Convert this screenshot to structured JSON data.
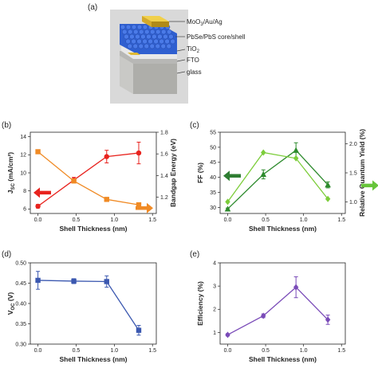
{
  "panels": {
    "a": "(a)",
    "b": "(b)",
    "c": "(c)",
    "d": "(d)",
    "e": "(e)"
  },
  "device_layers": [
    "MoO3/Au/Ag",
    "PbSe/PbS core/shell",
    "TiO2",
    "FTO",
    "glass"
  ],
  "colors": {
    "jsc": "#e8231e",
    "bandgap": "#f08a24",
    "ff": "#2e8b2e",
    "qy": "#7ccd3a",
    "voc": "#3b58b0",
    "eff": "#7a4bb8",
    "arrow_jsc": "#e8231e",
    "arrow_bandgap": "#f08a24",
    "arrow_ff": "#2e7d32",
    "arrow_qy": "#66c43a"
  },
  "chart_data": [
    {
      "panel": "b",
      "type": "line",
      "xlabel": "Shell Thickness (nm)",
      "xlim": [
        -0.1,
        1.55
      ],
      "xticks": [
        "0.0",
        "0.5",
        "1.0",
        "1.5"
      ],
      "ylabel_left": "J_SC (mA/cm²)",
      "ylim_left": [
        5.5,
        14.5
      ],
      "yticks_left": [
        "6",
        "8",
        "10",
        "12",
        "14"
      ],
      "ylabel_right": "Bandgap Energy (eV)",
      "ylim_right": [
        1.05,
        1.8
      ],
      "yticks_right": [
        "1.2",
        "1.4",
        "1.6",
        "1.8"
      ],
      "series": [
        {
          "axis": "left",
          "color": "jsc",
          "marker": "circle",
          "x": [
            0,
            0.47,
            0.9,
            1.32
          ],
          "y": [
            6.3,
            9.2,
            11.8,
            12.2
          ],
          "err": [
            0.2,
            0.3,
            0.7,
            1.2
          ]
        },
        {
          "axis": "right",
          "color": "bandgap",
          "marker": "square",
          "x": [
            0,
            0.47,
            0.9,
            1.32
          ],
          "y": [
            1.62,
            1.35,
            1.18,
            1.13
          ],
          "err": [
            0,
            0,
            0,
            0
          ]
        }
      ]
    },
    {
      "panel": "c",
      "type": "line",
      "xlabel": "Shell Thickness (nm)",
      "xlim": [
        -0.1,
        1.55
      ],
      "xticks": [
        "0.0",
        "0.5",
        "1.0",
        "1.5"
      ],
      "ylabel_left": "FF (%)",
      "ylim_left": [
        28,
        55
      ],
      "yticks_left": [
        "30",
        "35",
        "40",
        "45",
        "50",
        "55"
      ],
      "ylabel_right": "Relative Quantum Yield (%)",
      "ylim_right": [
        0.8,
        2.2
      ],
      "yticks_right": [
        "1.0",
        "1.5",
        "2.0"
      ],
      "series": [
        {
          "axis": "left",
          "color": "ff",
          "marker": "triangle",
          "x": [
            0,
            0.47,
            0.9,
            1.32
          ],
          "y": [
            29.5,
            41,
            49,
            37.5
          ],
          "err": [
            0.3,
            1.5,
            2.5,
            1
          ]
        },
        {
          "axis": "right",
          "color": "qy",
          "marker": "diamond",
          "x": [
            0,
            0.47,
            0.9,
            1.32
          ],
          "y": [
            1.0,
            1.85,
            1.75,
            1.05
          ],
          "err": [
            0,
            0,
            0,
            0
          ]
        }
      ]
    },
    {
      "panel": "d",
      "type": "line",
      "xlabel": "Shell Thickness (nm)",
      "xlim": [
        -0.1,
        1.55
      ],
      "xticks": [
        "0.0",
        "0.5",
        "1.0",
        "1.5"
      ],
      "ylabel_left": "V_OC (V)",
      "ylim_left": [
        0.3,
        0.5
      ],
      "yticks_left": [
        "0.30",
        "0.35",
        "0.40",
        "0.45",
        "0.50"
      ],
      "series": [
        {
          "axis": "left",
          "color": "voc",
          "marker": "square",
          "x": [
            0,
            0.47,
            0.9,
            1.32
          ],
          "y": [
            0.457,
            0.455,
            0.454,
            0.334
          ],
          "err": [
            0.022,
            0.006,
            0.014,
            0.012
          ]
        }
      ]
    },
    {
      "panel": "e",
      "type": "line",
      "xlabel": "Shell Thickness (nm)",
      "xlim": [
        -0.1,
        1.55
      ],
      "xticks": [
        "0.0",
        "0.5",
        "1.0",
        "1.5"
      ],
      "ylabel_left": "Efficiency (%)",
      "ylim_left": [
        0.5,
        4.0
      ],
      "yticks_left": [
        "1",
        "2",
        "3",
        "4"
      ],
      "series": [
        {
          "axis": "left",
          "color": "eff",
          "marker": "diamond",
          "x": [
            0,
            0.47,
            0.9,
            1.32
          ],
          "y": [
            0.9,
            1.72,
            2.95,
            1.55
          ],
          "err": [
            0.05,
            0.08,
            0.45,
            0.2
          ]
        }
      ]
    }
  ]
}
